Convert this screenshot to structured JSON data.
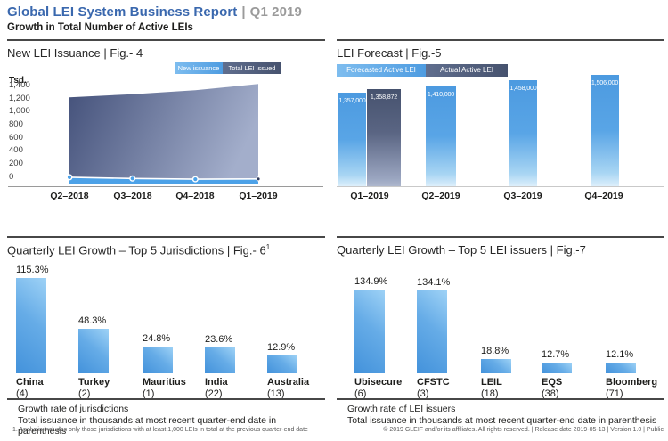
{
  "header": {
    "title": "Global LEI System Business Report",
    "divider": "|",
    "period": "Q1 2019",
    "subtitle": "Growth in Total Number of Active LEIs"
  },
  "colors": {
    "brand_blue": "#3A68AE",
    "muted_gray": "#9B9B9B",
    "light_blue": "#54A5E8",
    "slate_blue": "#4E5B7E",
    "bar_gradient_dark": "#4392DB",
    "bar_gradient_light": "#9ED2F6",
    "text_dark": "#1D1D1B"
  },
  "footer": {
    "footnote": "1. Analysis includes only those jurisdictions with at least 1,000 LEIs in total at the previous quarter-end date",
    "copyright": "© 2019 GLEIF and/or its affiliates. All rights reserved.  |  Release date 2019-05-13  |  Version 1.0  |  Public"
  },
  "chart_data": [
    {
      "id": "fig4",
      "type": "area",
      "title": "New LEI Issuance | Fig.- 4",
      "unit_label": "Tsd.",
      "x": [
        "Q2–2018",
        "Q3–2018",
        "Q4–2018",
        "Q1–2019"
      ],
      "yticks": [
        "1,400",
        "1,200",
        "1,000",
        "800",
        "600",
        "400",
        "200",
        "0"
      ],
      "ylim": [
        0,
        1400
      ],
      "legend_position": "top-right",
      "series": [
        {
          "name": "New issuance",
          "values": [
            90,
            72,
            62,
            66
          ]
        },
        {
          "name": "Total LEI issued",
          "values": [
            1220,
            1265,
            1320,
            1410
          ]
        }
      ]
    },
    {
      "id": "fig5",
      "type": "bar",
      "title": "LEI Forecast | Fig.-5",
      "categories": [
        "Q1–2019",
        "Q2–2019",
        "Q3–2019",
        "Q4–2019"
      ],
      "legend_position": "top-left",
      "value_labels_position": "inside-top",
      "series": [
        {
          "name": "Forecasted Active LEI",
          "values": [
            1357000,
            1410000,
            1458000,
            1506000
          ],
          "labels": [
            "1,357,000",
            "1,410,000",
            "1,458,000",
            "1,506,000"
          ]
        },
        {
          "name": "Actual Active LEI",
          "values": [
            1358872
          ],
          "labels": [
            "1,358,872"
          ],
          "category_index": 0
        }
      ]
    },
    {
      "id": "fig6",
      "type": "bar",
      "title": "Quarterly LEI Growth – Top 5 Jurisdictions | Fig.- 6",
      "footnote_marker": "1",
      "categories": [
        "China",
        "Turkey",
        "Mauritius",
        "India",
        "Australia"
      ],
      "category_sublabels": [
        "(4)",
        "(2)",
        "(1)",
        "(22)",
        "(13)"
      ],
      "values": [
        115.3,
        48.3,
        24.8,
        23.6,
        12.9
      ],
      "value_labels": [
        "115.3%",
        "48.3%",
        "24.8%",
        "23.6%",
        "12.9%"
      ],
      "captions": [
        "Growth rate of jurisdictions",
        "Total issuance in thousands at most recent quarter-end date in parenthesis"
      ]
    },
    {
      "id": "fig7",
      "type": "bar",
      "title": "Quarterly LEI Growth – Top 5 LEI issuers | Fig.-7",
      "categories": [
        "Ubisecure",
        "CFSTC",
        "LEIL",
        "EQS",
        "Bloomberg"
      ],
      "category_sublabels": [
        "(6)",
        "(3)",
        "(18)",
        "(38)",
        "(71)"
      ],
      "values": [
        134.9,
        134.1,
        18.8,
        12.7,
        12.1
      ],
      "value_labels": [
        "134.9%",
        "134.1%",
        "18.8%",
        "12.7%",
        "12.1%"
      ],
      "captions": [
        "Growth rate of LEI issuers",
        "Total issuance in thousands at most recent quarter-end date in parenthesis"
      ]
    }
  ]
}
